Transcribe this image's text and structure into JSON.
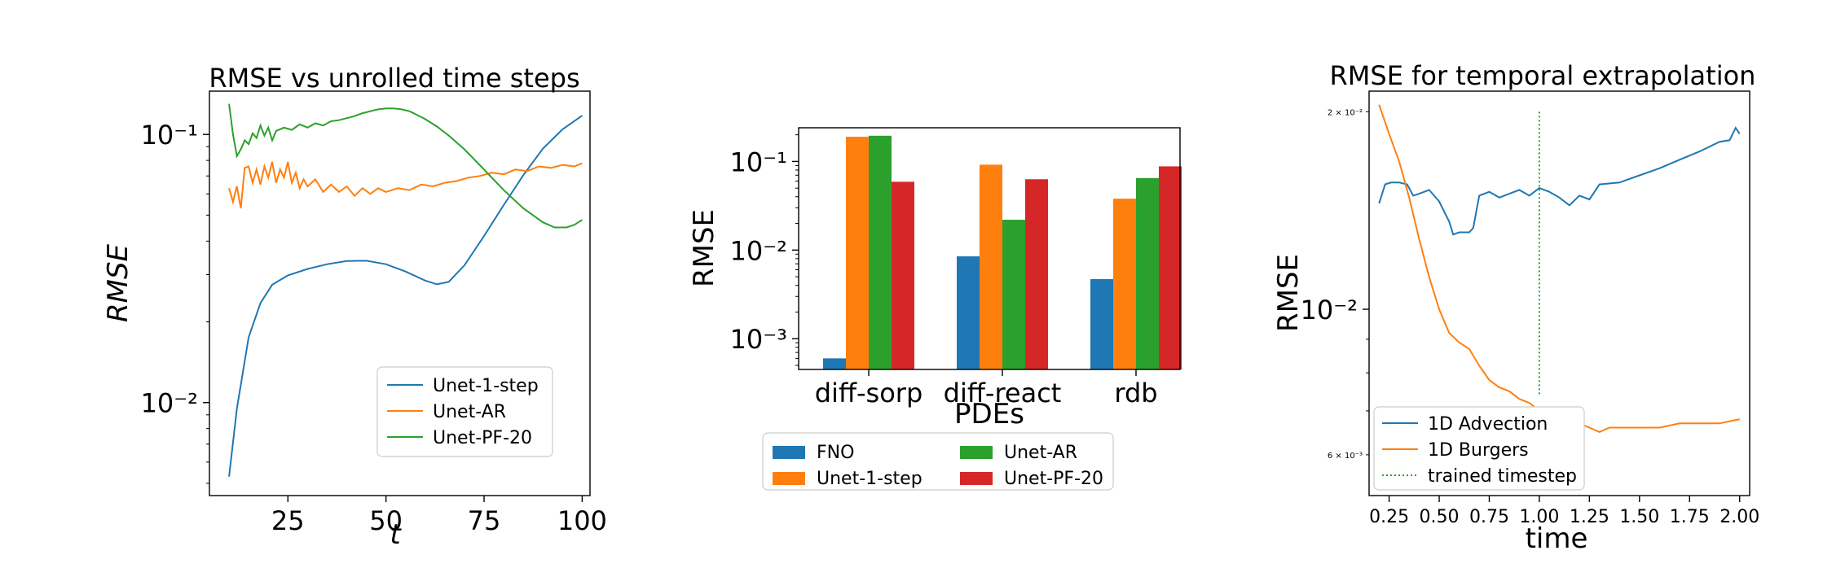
{
  "chart_data": [
    {
      "type": "line",
      "title": "RMSE vs unrolled time steps",
      "xlabel": "t",
      "ylabel": "RMSE",
      "yscale": "log",
      "xlim": [
        5,
        102
      ],
      "ylim": [
        0.0045,
        0.145
      ],
      "xticks": [
        25,
        50,
        75,
        100
      ],
      "xtick_labels": [
        "25",
        "50",
        "75",
        "100"
      ],
      "yticks": [
        0.01,
        0.1
      ],
      "ytick_labels": [
        "10⁻²",
        "10⁻¹"
      ],
      "legend_position": "lower-right",
      "grid": false,
      "series": [
        {
          "name": "Unet-1-step",
          "color": "#1f77b4",
          "x": [
            10,
            12,
            15,
            18,
            21,
            25,
            30,
            35,
            40,
            45,
            50,
            55,
            60,
            63,
            66,
            70,
            75,
            80,
            85,
            90,
            95,
            100
          ],
          "y": [
            0.0053,
            0.0095,
            0.0175,
            0.0235,
            0.0275,
            0.0298,
            0.0315,
            0.0328,
            0.0337,
            0.0338,
            0.0328,
            0.0308,
            0.0285,
            0.0276,
            0.0282,
            0.0325,
            0.0418,
            0.0545,
            0.0705,
            0.0885,
            0.1045,
            0.1175
          ]
        },
        {
          "name": "Unet-AR",
          "color": "#ff7f0e",
          "x": [
            10,
            11,
            12,
            13,
            14,
            15,
            16,
            17,
            18,
            19,
            20,
            21,
            22,
            23,
            24,
            25,
            26,
            27,
            28,
            29,
            30,
            32,
            34,
            36,
            38,
            40,
            42,
            44,
            46,
            48,
            50,
            53,
            56,
            59,
            62,
            65,
            68,
            71,
            74,
            77,
            80,
            83,
            86,
            89,
            92,
            95,
            98,
            100
          ],
          "y": [
            0.063,
            0.056,
            0.064,
            0.053,
            0.075,
            0.076,
            0.066,
            0.074,
            0.065,
            0.076,
            0.069,
            0.079,
            0.066,
            0.074,
            0.069,
            0.079,
            0.066,
            0.072,
            0.063,
            0.068,
            0.064,
            0.068,
            0.061,
            0.065,
            0.061,
            0.064,
            0.059,
            0.063,
            0.06,
            0.063,
            0.061,
            0.063,
            0.062,
            0.065,
            0.064,
            0.066,
            0.067,
            0.069,
            0.07,
            0.072,
            0.071,
            0.074,
            0.073,
            0.076,
            0.075,
            0.077,
            0.076,
            0.078
          ]
        },
        {
          "name": "Unet-PF-20",
          "color": "#2ca02c",
          "x": [
            10,
            11,
            12,
            13,
            14,
            15,
            16,
            17,
            18,
            19,
            20,
            21,
            22,
            24,
            26,
            28,
            30,
            32,
            34,
            36,
            38,
            40,
            42,
            44,
            46,
            48,
            50,
            52,
            54,
            56,
            58,
            60,
            63,
            66,
            70,
            75,
            80,
            85,
            90,
            93,
            96,
            98,
            100
          ],
          "y": [
            0.13,
            0.1,
            0.083,
            0.088,
            0.095,
            0.092,
            0.101,
            0.097,
            0.108,
            0.099,
            0.106,
            0.095,
            0.103,
            0.106,
            0.104,
            0.109,
            0.106,
            0.11,
            0.108,
            0.112,
            0.113,
            0.115,
            0.117,
            0.12,
            0.122,
            0.124,
            0.125,
            0.125,
            0.124,
            0.122,
            0.118,
            0.114,
            0.107,
            0.099,
            0.088,
            0.074,
            0.062,
            0.053,
            0.047,
            0.045,
            0.045,
            0.046,
            0.048
          ]
        }
      ]
    },
    {
      "type": "bar",
      "title": "",
      "xlabel": "PDEs",
      "ylabel": "RMSE",
      "yscale": "log",
      "ylim": [
        0.00045,
        0.24
      ],
      "yticks": [
        0.001,
        0.01,
        0.1
      ],
      "ytick_labels": [
        "10⁻³",
        "10⁻²",
        "10⁻¹"
      ],
      "categories": [
        "diff-sorp",
        "diff-react",
        "rdb"
      ],
      "legend_position": "below",
      "grid": false,
      "series": [
        {
          "name": "FNO",
          "color": "#1f77b4",
          "values": [
            0.0006,
            0.0085,
            0.0047
          ]
        },
        {
          "name": "Unet-1-step",
          "color": "#ff7f0e",
          "values": [
            0.19,
            0.092,
            0.038
          ]
        },
        {
          "name": "Unet-AR",
          "color": "#2ca02c",
          "values": [
            0.195,
            0.022,
            0.065
          ]
        },
        {
          "name": "Unet-PF-20",
          "color": "#d62728",
          "values": [
            0.059,
            0.063,
            0.088
          ]
        }
      ]
    },
    {
      "type": "line",
      "title": "RMSE for temporal extrapolation",
      "xlabel": "time",
      "ylabel": "RMSE",
      "yscale": "log",
      "xlim": [
        0.15,
        2.05
      ],
      "ylim": [
        0.0052,
        0.0215
      ],
      "xticks": [
        0.25,
        0.5,
        0.75,
        1.0,
        1.25,
        1.5,
        1.75,
        2.0
      ],
      "xtick_labels": [
        "0.25",
        "0.50",
        "0.75",
        "1.00",
        "1.25",
        "1.50",
        "1.75",
        "2.00"
      ],
      "yticks": [
        0.006,
        0.01,
        0.02
      ],
      "ytick_labels": [
        "6 × 10⁻³",
        "10⁻²",
        "2 × 10⁻²"
      ],
      "legend_position": "lower-left",
      "grid": false,
      "vline": {
        "name": "trained timestep",
        "x": 1.0,
        "color": "#2ca02c",
        "style": "dotted"
      },
      "series": [
        {
          "name": "1D Advection",
          "color": "#1f77b4",
          "x": [
            0.2,
            0.23,
            0.26,
            0.3,
            0.34,
            0.37,
            0.4,
            0.45,
            0.5,
            0.55,
            0.57,
            0.6,
            0.65,
            0.67,
            0.7,
            0.75,
            0.8,
            0.85,
            0.9,
            0.95,
            1.0,
            1.05,
            1.1,
            1.15,
            1.2,
            1.25,
            1.3,
            1.4,
            1.5,
            1.6,
            1.7,
            1.8,
            1.9,
            1.95,
            1.98,
            2.0
          ],
          "y": [
            0.0145,
            0.0155,
            0.0156,
            0.0156,
            0.0155,
            0.0149,
            0.015,
            0.0152,
            0.0146,
            0.0136,
            0.013,
            0.0131,
            0.0131,
            0.0133,
            0.0149,
            0.0151,
            0.0148,
            0.015,
            0.0152,
            0.0149,
            0.0153,
            0.0151,
            0.0148,
            0.0144,
            0.0149,
            0.0147,
            0.0155,
            0.0156,
            0.016,
            0.0164,
            0.0169,
            0.0174,
            0.018,
            0.0181,
            0.0189,
            0.0185
          ]
        },
        {
          "name": "1D Burgers",
          "color": "#ff7f0e",
          "x": [
            0.2,
            0.25,
            0.3,
            0.35,
            0.4,
            0.45,
            0.5,
            0.55,
            0.6,
            0.65,
            0.7,
            0.75,
            0.8,
            0.85,
            0.9,
            0.95,
            1.0,
            1.05,
            1.1,
            1.15,
            1.2,
            1.25,
            1.3,
            1.35,
            1.4,
            1.5,
            1.6,
            1.7,
            1.8,
            1.9,
            2.0
          ],
          "y": [
            0.0205,
            0.0185,
            0.0168,
            0.0148,
            0.0128,
            0.0112,
            0.01,
            0.0092,
            0.0089,
            0.0087,
            0.0082,
            0.0078,
            0.0076,
            0.0075,
            0.0073,
            0.0072,
            0.007,
            0.0069,
            0.0069,
            0.0068,
            0.0067,
            0.0066,
            0.0065,
            0.0066,
            0.0066,
            0.0066,
            0.0066,
            0.0067,
            0.0067,
            0.0067,
            0.0068
          ]
        }
      ]
    }
  ]
}
